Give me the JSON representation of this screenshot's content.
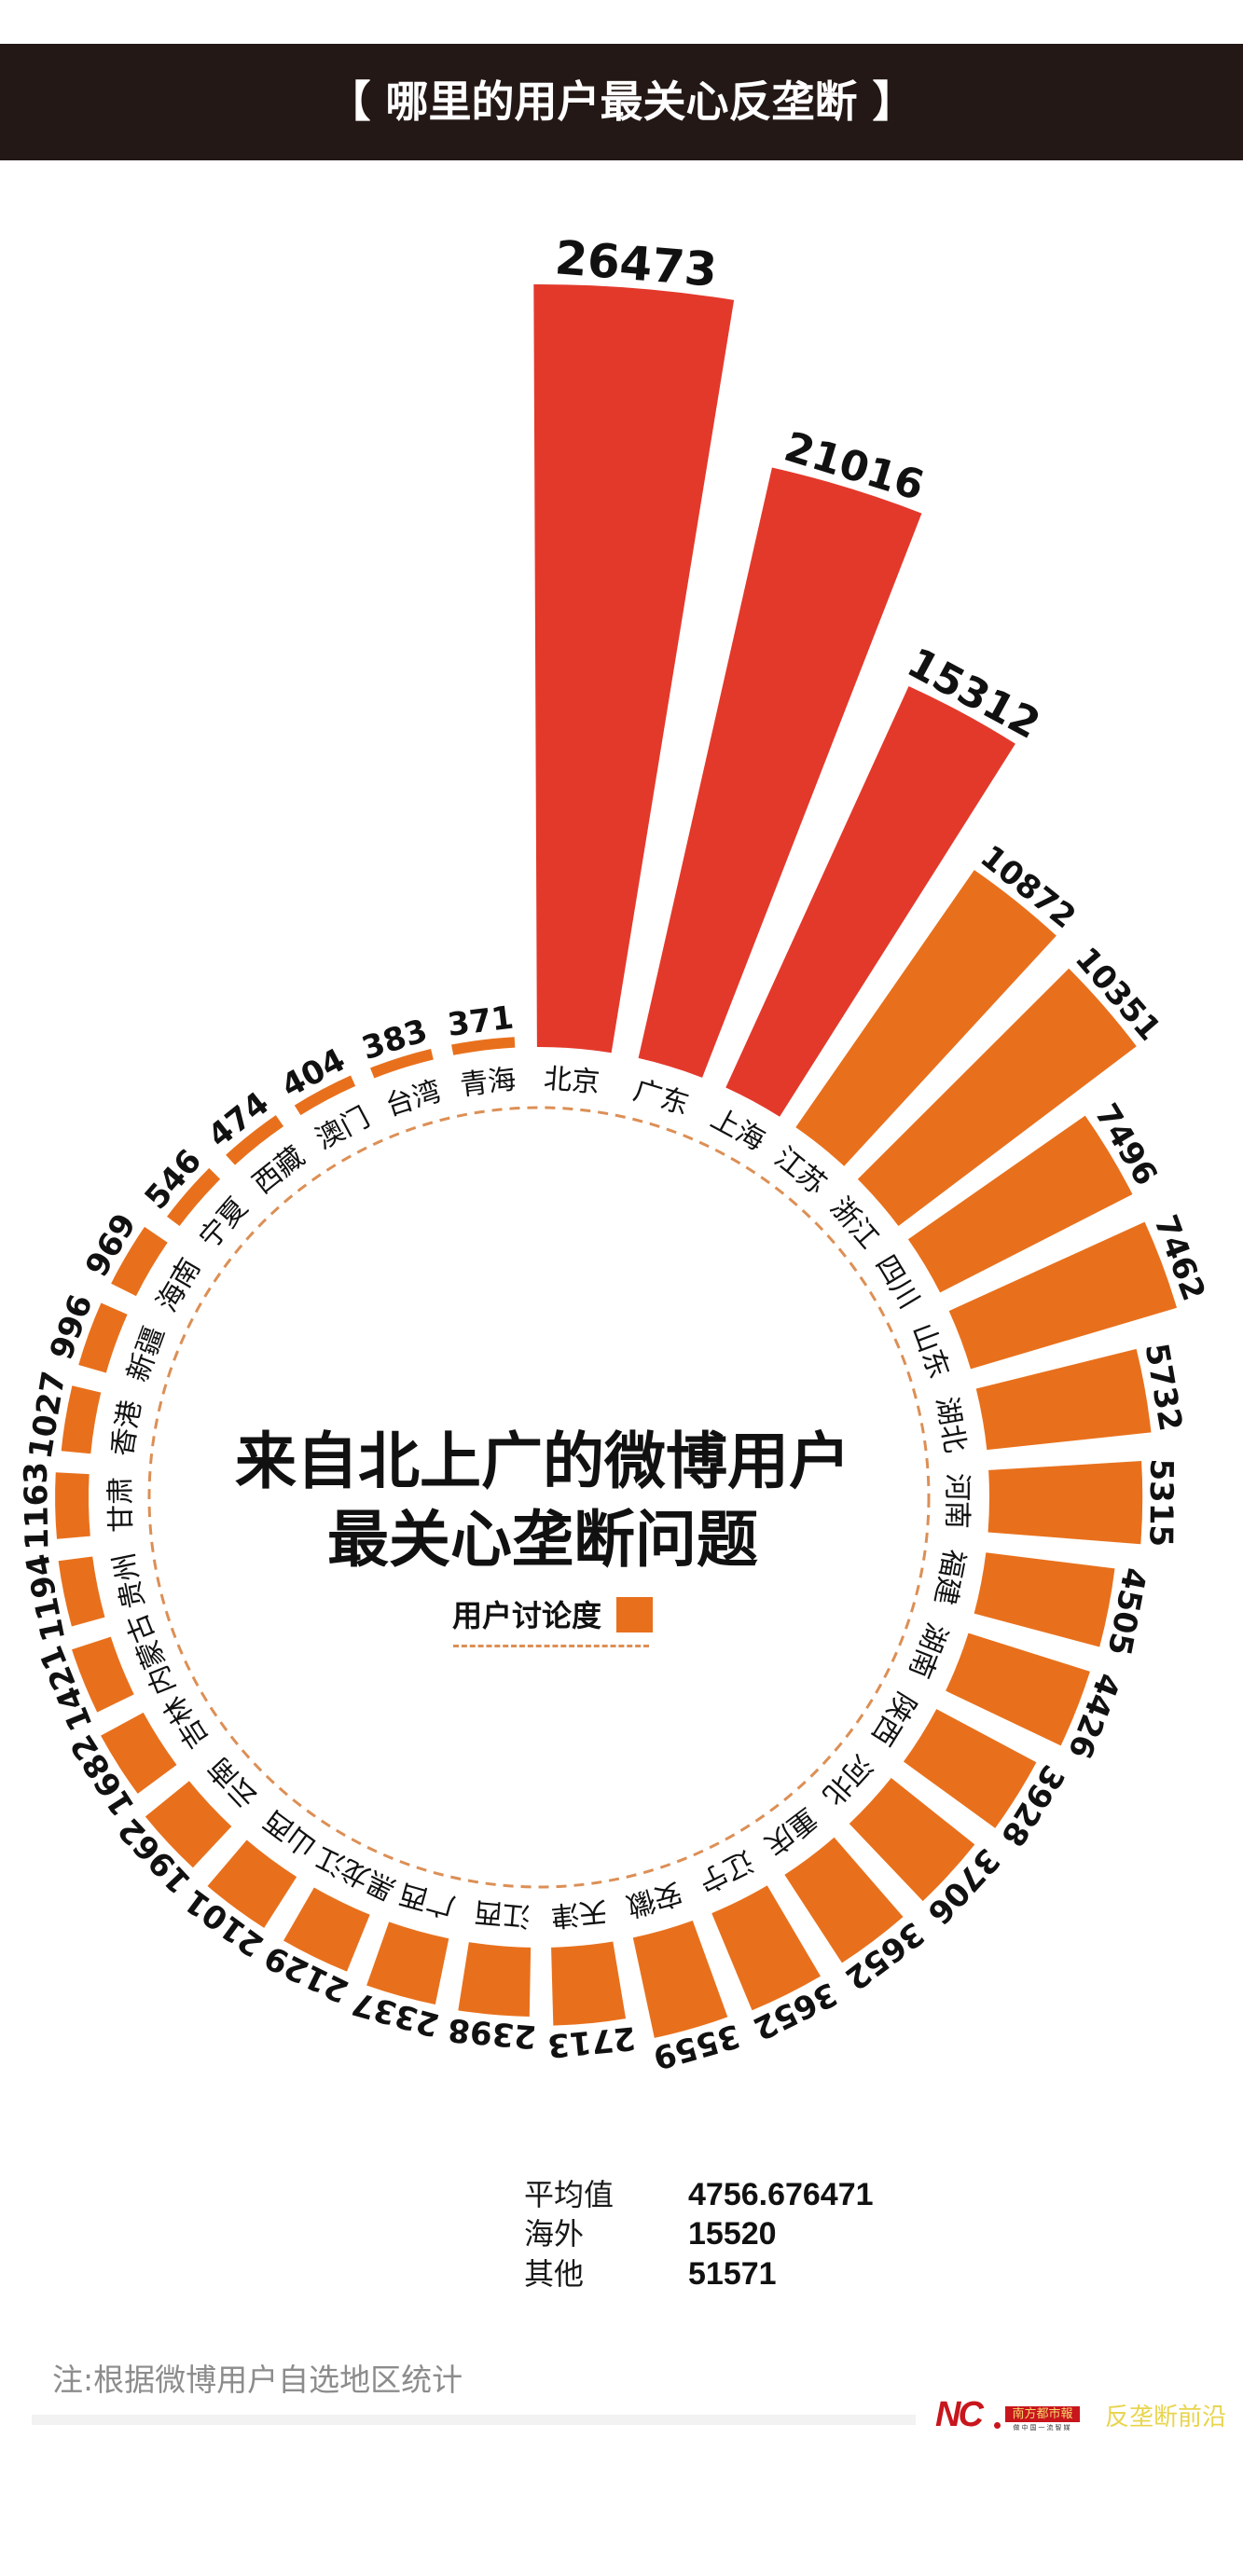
{
  "header": {
    "title": "【 哪里的用户最关心反垄断 】"
  },
  "center": {
    "line1": "来自北上广的微博用户",
    "line2": "最关心垄断问题",
    "legend_label": "用户讨论度"
  },
  "stats": [
    {
      "label": "平均值",
      "value": "4756.676471"
    },
    {
      "label": "海外",
      "value": "15520"
    },
    {
      "label": "其他",
      "value": "51571"
    }
  ],
  "footer": {
    "note": "注:根据微博用户自选地区统计",
    "logo_mark": "NC",
    "logo_name": "南方都市報",
    "logo_slogan": "做中国一流智媒",
    "column_name": "反垄断前沿"
  },
  "colors": {
    "header_bg": "#231815",
    "highlight_bar": "#E3392B",
    "default_bar": "#E8701C",
    "dashed_ring": "#DC8F55",
    "note_text": "#8C8C8C",
    "logo_red": "#C8161D",
    "column_yellow": "#E8D44D"
  },
  "chart_data": {
    "type": "bar",
    "layout": "radial",
    "title": "来自北上广的微博用户最关心垄断问题",
    "xlabel": "",
    "ylabel": "用户讨论度",
    "legend": [
      "用户讨论度"
    ],
    "legend_position": "center",
    "grid": false,
    "highlight_top_n": 3,
    "categories": [
      "北京",
      "广东",
      "上海",
      "江苏",
      "浙江",
      "四川",
      "山东",
      "湖北",
      "河南",
      "福建",
      "湖南",
      "陕西",
      "河北",
      "重庆",
      "辽宁",
      "安徽",
      "天津",
      "江西",
      "广西",
      "黑龙江",
      "山西",
      "云南",
      "吉林",
      "内蒙古",
      "贵州",
      "甘肃",
      "香港",
      "新疆",
      "海南",
      "宁夏",
      "西藏",
      "澳门",
      "台湾",
      "青海"
    ],
    "values": [
      26473,
      21016,
      15312,
      10872,
      10351,
      7496,
      7462,
      5732,
      5315,
      4505,
      4426,
      3928,
      3706,
      3652,
      3652,
      3559,
      2713,
      2398,
      2337,
      2129,
      2101,
      1962,
      1682,
      1421,
      1194,
      1163,
      1027,
      996,
      969,
      546,
      474,
      404,
      383,
      371
    ],
    "series": [
      {
        "name": "用户讨论度",
        "values": [
          26473,
          21016,
          15312,
          10872,
          10351,
          7496,
          7462,
          5732,
          5315,
          4505,
          4426,
          3928,
          3706,
          3652,
          3652,
          3559,
          2713,
          2398,
          2337,
          2129,
          2101,
          1962,
          1682,
          1421,
          1194,
          1163,
          1027,
          996,
          969,
          546,
          474,
          404,
          383,
          371
        ]
      }
    ],
    "annotations": {
      "平均值": 4756.676471,
      "海外": 15520,
      "其他": 51571
    }
  }
}
